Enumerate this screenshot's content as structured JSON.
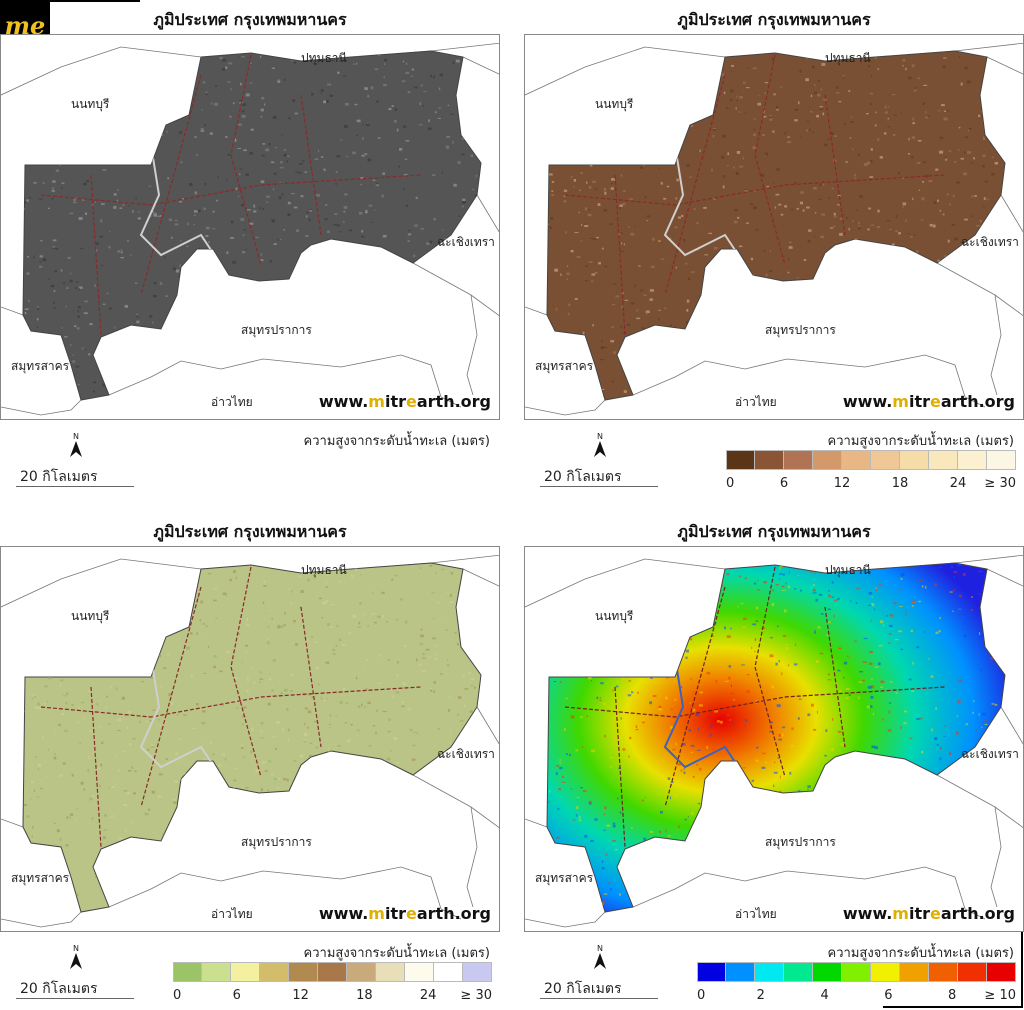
{
  "logo": {
    "text": "me"
  },
  "map_title": "ภูมิประเทศ กรุงเทพมหานคร",
  "places": {
    "pathum": "ปทุมธานี",
    "nonthaburi": "นนทบุรี",
    "chachoengsao": "ฉะเชิงเทรา",
    "samut_prakan": "สมุทรปราการ",
    "samut_sakhon": "สมุทรสาคร",
    "gulf": "อ่าวไทย"
  },
  "website": {
    "prefix": "www.",
    "m": "m",
    "i": "i",
    "tr": "tr",
    "e": "e",
    "arth": "arth.org"
  },
  "legend_title": "ความสูงจากระดับน้ำทะเล (เมตร)",
  "north_label": "N",
  "scale_label": "20 กิโลเมตร",
  "panels": [
    {
      "id": "hillshade",
      "legend": null
    },
    {
      "id": "brown",
      "colors": [
        "#5a3616",
        "#8a5535",
        "#b07454",
        "#d4996a",
        "#e8b784",
        "#f0c896",
        "#f6dca8",
        "#f9e8bc",
        "#fbf1d0",
        "#fcf7e4"
      ],
      "ticks": [
        "0",
        "6",
        "12",
        "18",
        "24",
        "≥ 30"
      ]
    },
    {
      "id": "green",
      "colors": [
        "#9bc467",
        "#cbe08e",
        "#f3f1a0",
        "#d3bd6a",
        "#b08a4f",
        "#a8784a",
        "#c9aa7a",
        "#e8deb8",
        "#fdfbec",
        "#ffffff",
        "#c8c8f0"
      ],
      "ticks": [
        "0",
        "6",
        "12",
        "18",
        "24",
        "≥ 30"
      ]
    },
    {
      "id": "rainbow",
      "colors": [
        "#0000e0",
        "#0090ff",
        "#00e8f0",
        "#00e890",
        "#00d800",
        "#80f000",
        "#f0f000",
        "#f0a000",
        "#f06000",
        "#f03000",
        "#e80000"
      ],
      "ticks": [
        "0",
        "2",
        "4",
        "6",
        "8",
        "≥ 10"
      ]
    }
  ]
}
